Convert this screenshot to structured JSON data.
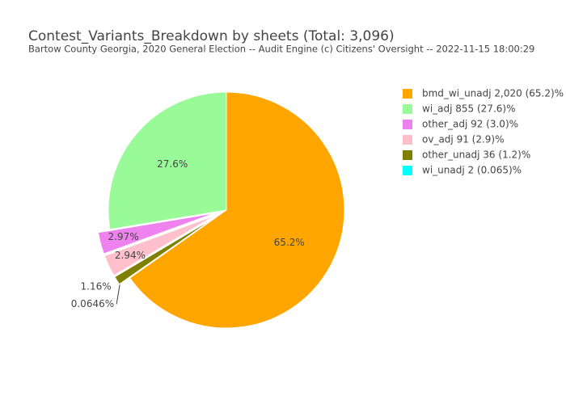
{
  "chart_data": {
    "type": "pie",
    "title": "Contest_Variants_Breakdown by sheets (Total: 3,096)",
    "subtitle": "Bartow County Georgia, 2020 General Election -- Audit Engine (c) Citizens' Oversight -- 2022-11-15 18:00:29",
    "categories": [
      "bmd_wi_unadj 2,020 (65.2)%",
      "wi_adj 855 (27.6)%",
      "other_adj 92 (3.0)%",
      "ov_adj 91 (2.9)%",
      "other_unadj 36 (1.2)%",
      "wi_unadj 2 (0.065)%"
    ],
    "values": [
      65.2,
      27.6,
      2.97,
      2.94,
      1.16,
      0.0646
    ],
    "value_labels": [
      "65.2%",
      "27.6%",
      "2.97%",
      "2.94%",
      "1.16%",
      "0.0646%"
    ],
    "colors": [
      "#ffa500",
      "#98fb98",
      "#ee82ee",
      "#ffc0cb",
      "#808000",
      "#00ffff"
    ],
    "legend": "top-right"
  }
}
